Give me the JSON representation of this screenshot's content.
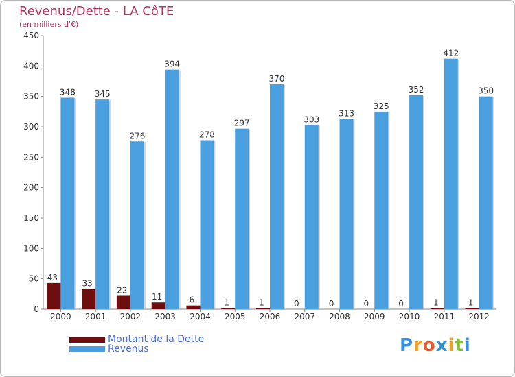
{
  "title": "Revenus/Dette - LA CôTE",
  "subtitle": "(en milliers d'€)",
  "colors": {
    "title": "#b5325a",
    "dette": "#6e0e0e",
    "revenus": "#4a9fdf",
    "legend_text": "#4b6fe0"
  },
  "legend": {
    "dette_label": "Montant de la Dette",
    "revenus_label": "Revenus"
  },
  "logo": {
    "text": "Proxiti",
    "letters": [
      "P",
      "r",
      "o",
      "x",
      "i",
      "t",
      "i"
    ],
    "colors": [
      "#3b8fd8",
      "#f0a020",
      "#e85a2a",
      "#2f8fd0",
      "#f0a020",
      "#7fbf30",
      "#3b8fd8"
    ]
  },
  "chart_data": {
    "type": "bar",
    "title": "Revenus/Dette - LA CôTE",
    "ylabel": "(en milliers d'€)",
    "xlabel": "",
    "categories": [
      "2000",
      "2001",
      "2002",
      "2003",
      "2004",
      "2005",
      "2006",
      "2007",
      "2008",
      "2009",
      "2010",
      "2011",
      "2012"
    ],
    "series": [
      {
        "name": "Montant de la Dette",
        "values": [
          43,
          33,
          22,
          11,
          6,
          1,
          1,
          0,
          0,
          0,
          0,
          1,
          1
        ]
      },
      {
        "name": "Revenus",
        "values": [
          348,
          345,
          276,
          394,
          278,
          297,
          370,
          303,
          313,
          325,
          352,
          412,
          350
        ]
      }
    ],
    "ylim": [
      0,
      450
    ],
    "yticks": [
      0,
      50,
      100,
      150,
      200,
      250,
      300,
      350,
      400,
      450
    ],
    "grid": false,
    "legend": "bottom-left"
  }
}
